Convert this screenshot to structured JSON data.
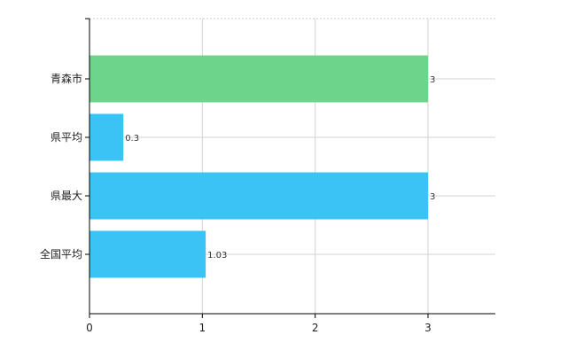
{
  "chart_data": {
    "type": "bar",
    "orientation": "horizontal",
    "categories": [
      "青森市",
      "県平均",
      "県最大",
      "全国平均"
    ],
    "values": [
      3,
      0.3,
      3,
      1.03
    ],
    "value_labels": [
      "3",
      "0.3",
      "3",
      "1.03"
    ],
    "bar_colors": [
      "#6dd48b",
      "#3bc3f5",
      "#3bc3f5",
      "#3bc3f5"
    ],
    "x_ticks": [
      "0",
      "1",
      "2",
      "3"
    ],
    "xlim": [
      0,
      3.6
    ],
    "grid": true,
    "legend": "none"
  }
}
